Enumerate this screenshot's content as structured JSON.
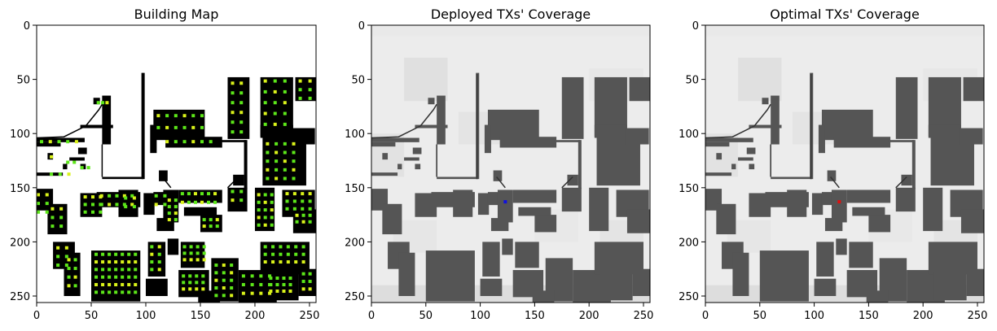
{
  "chart_data": [
    {
      "type": "heatmap",
      "title": "Building Map",
      "xlim": [
        0,
        256
      ],
      "ylim": [
        256,
        0
      ],
      "xticks": [
        0,
        50,
        100,
        150,
        200,
        250
      ],
      "yticks": [
        0,
        50,
        100,
        150,
        200,
        250
      ],
      "grid": false,
      "colors": {
        "building": "#000000",
        "free": "#ffffff",
        "marker_green": "#5ce619",
        "marker_yellow": "#d9f21a"
      }
    },
    {
      "type": "heatmap",
      "title": "Deployed TXs' Coverage",
      "xlim": [
        0,
        256
      ],
      "ylim": [
        256,
        0
      ],
      "xticks": [
        0,
        50,
        100,
        150,
        200,
        250
      ],
      "yticks": [
        0,
        50,
        100,
        150,
        200,
        250
      ],
      "grid": false,
      "tx_points": [
        {
          "x": 123,
          "y": 163,
          "color": "#1010e0"
        }
      ],
      "colors": {
        "building": "#555555",
        "coverage": "#ececec"
      }
    },
    {
      "type": "heatmap",
      "title": "Optimal TXs' Coverage",
      "xlim": [
        0,
        256
      ],
      "ylim": [
        256,
        0
      ],
      "xticks": [
        0,
        50,
        100,
        150,
        200,
        250
      ],
      "yticks": [
        0,
        50,
        100,
        150,
        200,
        250
      ],
      "grid": false,
      "tx_points": [
        {
          "x": 123,
          "y": 163,
          "color": "#e01010"
        }
      ],
      "colors": {
        "building": "#555555",
        "coverage": "#ececec"
      }
    }
  ]
}
